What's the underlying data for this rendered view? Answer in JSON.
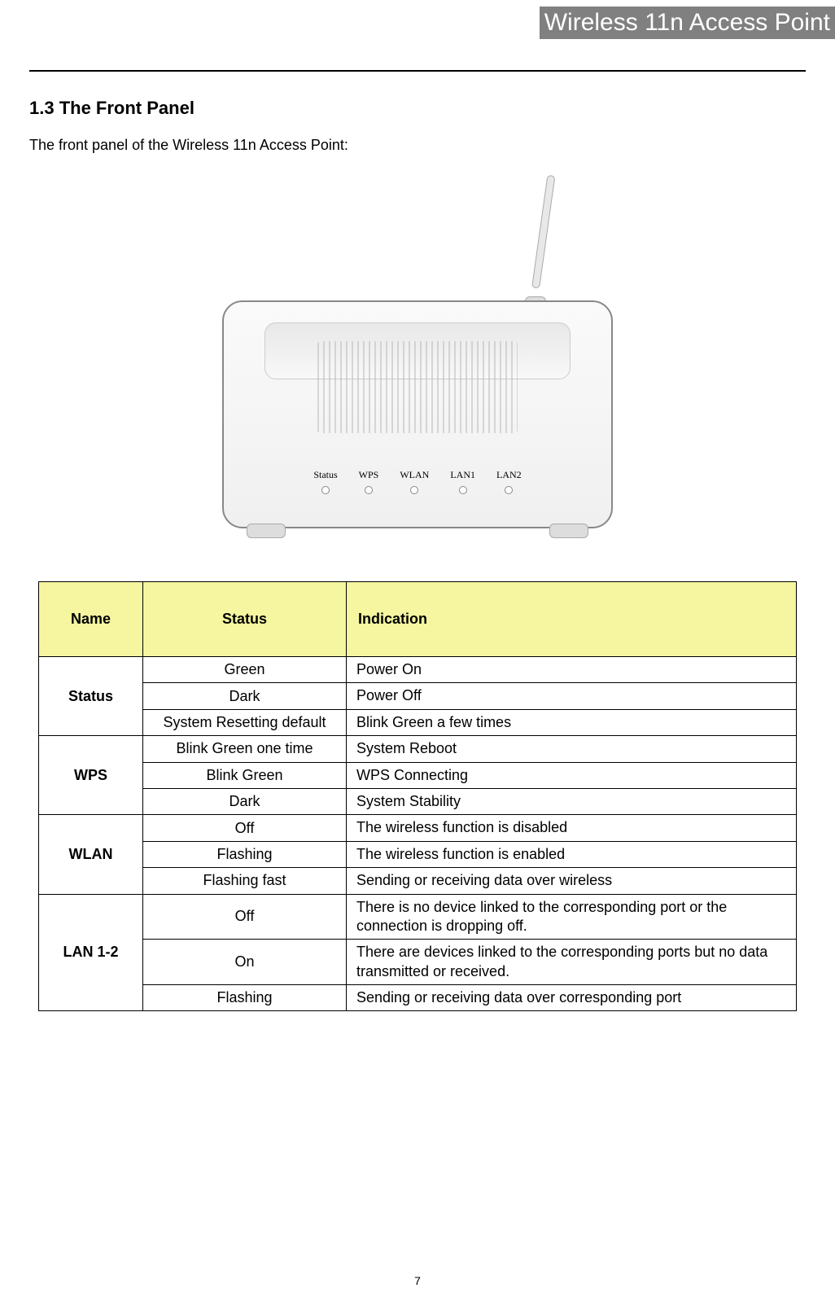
{
  "header": {
    "title": "Wireless 11n Access Point"
  },
  "section": {
    "title": "1.3 The Front Panel"
  },
  "intro": "The front panel of the Wireless 11n Access Point:",
  "device": {
    "leds": [
      "Status",
      "WPS",
      "WLAN",
      "LAN1",
      "LAN2"
    ]
  },
  "table": {
    "columns": [
      "Name",
      "Status",
      "Indication"
    ],
    "header_bg": "#f5f69f",
    "border_color": "#000000",
    "font_size": 18,
    "groups": [
      {
        "name": "Status",
        "rows": [
          {
            "status": "Green",
            "indication": "Power On"
          },
          {
            "status": "Dark",
            "indication": "Power Off"
          },
          {
            "status": "System Resetting default",
            "indication": "Blink Green a few times"
          }
        ]
      },
      {
        "name": "WPS",
        "rows": [
          {
            "status": "Blink Green one time",
            "indication": "System Reboot"
          },
          {
            "status": "Blink Green",
            "indication": "WPS Connecting"
          },
          {
            "status": "Dark",
            "indication": "System Stability"
          }
        ]
      },
      {
        "name": "WLAN",
        "rows": [
          {
            "status": "Off",
            "indication": "The wireless function is disabled"
          },
          {
            "status": "Flashing",
            "indication": "The wireless function is enabled"
          },
          {
            "status": "Flashing fast",
            "indication": "Sending or receiving data over wireless"
          }
        ]
      },
      {
        "name": "LAN 1-2",
        "rows": [
          {
            "status": "Off",
            "indication": "There is no device linked to the corresponding port or the connection is dropping off."
          },
          {
            "status": "On",
            "indication": "There are devices linked to the corresponding ports but no data transmitted or received."
          },
          {
            "status": "Flashing",
            "indication": "Sending or receiving data over corresponding port"
          }
        ]
      }
    ]
  },
  "page_number": "7"
}
